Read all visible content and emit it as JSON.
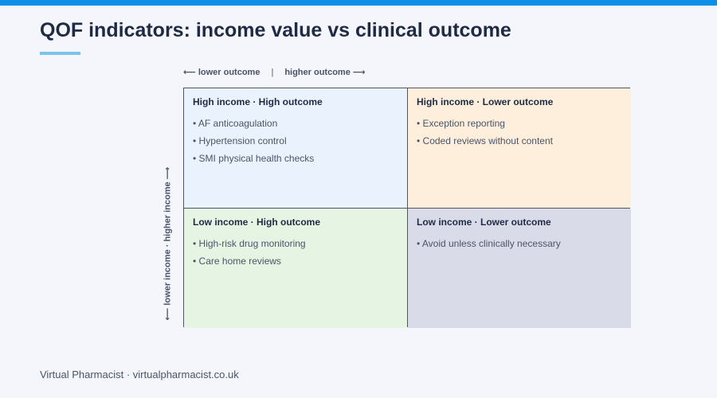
{
  "title": "QOF indicators: income value vs clinical outcome",
  "axes": {
    "x_left": "⟵ lower outcome",
    "x_separator": "|",
    "x_right": "higher outcome ⟶",
    "y": "⟵ lower income · higher income ⟶"
  },
  "quadrants": {
    "high_income_high_outcome": {
      "title": "High income · High outcome",
      "items": [
        "AF anticoagulation",
        "Hypertension control",
        "SMI physical health checks"
      ],
      "color": "#eaf3fd"
    },
    "high_income_lower_outcome": {
      "title": "High income · Lower outcome",
      "items": [
        "Exception reporting",
        "Coded reviews without content"
      ],
      "color": "#fdefdc"
    },
    "low_income_high_outcome": {
      "title": "Low income · High outcome",
      "items": [
        "High-risk drug monitoring",
        "Care home reviews"
      ],
      "color": "#e6f4e4"
    },
    "low_income_lower_outcome": {
      "title": "Low income · Lower outcome",
      "items": [
        "Avoid unless clinically necessary"
      ],
      "color": "#d9dce8"
    }
  },
  "footer": "Virtual Pharmacist · virtualpharmacist.co.uk",
  "colors": {
    "accent_bar": "#0d8fe8",
    "title_underline": "#7cc3ea",
    "grid_border": "#4d5566"
  }
}
